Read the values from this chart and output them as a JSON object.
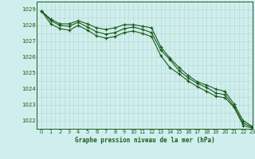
{
  "title": "Graphe pression niveau de la mer (hPa)",
  "xlim": [
    -0.5,
    23
  ],
  "ylim": [
    1021.5,
    1029.5
  ],
  "yticks": [
    1022,
    1023,
    1024,
    1025,
    1026,
    1027,
    1028,
    1029
  ],
  "xticks": [
    0,
    1,
    2,
    3,
    4,
    5,
    6,
    7,
    8,
    9,
    10,
    11,
    12,
    13,
    14,
    15,
    16,
    17,
    18,
    19,
    20,
    21,
    22,
    23
  ],
  "bg_color": "#d0eeee",
  "grid_color": "#b0d8cc",
  "line_color": "#1a5c1a",
  "line1_x": [
    0,
    1,
    2,
    3,
    4,
    5,
    6,
    7,
    8,
    9,
    10,
    11,
    12,
    13,
    14,
    15,
    16,
    17,
    18,
    19,
    20,
    21,
    22,
    23
  ],
  "line1_y": [
    1028.9,
    1028.4,
    1028.1,
    1028.1,
    1028.3,
    1028.1,
    1027.85,
    1027.75,
    1027.85,
    1028.05,
    1028.05,
    1027.95,
    1027.85,
    1026.65,
    1025.95,
    1025.35,
    1024.85,
    1024.45,
    1024.25,
    1024.0,
    1023.85,
    1023.05,
    1022.0,
    1021.65
  ],
  "line2_x": [
    0,
    1,
    2,
    3,
    4,
    5,
    6,
    7,
    8,
    9,
    10,
    11,
    12,
    13,
    14,
    15,
    16,
    17,
    18,
    19,
    20,
    21,
    22,
    23
  ],
  "line2_y": [
    1028.9,
    1028.3,
    1028.0,
    1027.95,
    1028.2,
    1027.9,
    1027.6,
    1027.45,
    1027.55,
    1027.8,
    1027.9,
    1027.75,
    1027.55,
    1026.45,
    1025.85,
    1025.15,
    1024.7,
    1024.35,
    1024.1,
    1023.75,
    1023.65,
    1022.9,
    1021.85,
    1021.6
  ],
  "line3_x": [
    0,
    1,
    2,
    3,
    4,
    5,
    6,
    7,
    8,
    9,
    10,
    11,
    12,
    13,
    14,
    15,
    16,
    17,
    18,
    19,
    20,
    21,
    22,
    23
  ],
  "line3_y": [
    1028.9,
    1028.1,
    1027.8,
    1027.7,
    1028.0,
    1027.7,
    1027.35,
    1027.2,
    1027.3,
    1027.55,
    1027.65,
    1027.5,
    1027.3,
    1026.1,
    1025.35,
    1024.95,
    1024.5,
    1024.15,
    1023.85,
    1023.55,
    1023.45,
    1022.85,
    1021.7,
    1021.55
  ]
}
